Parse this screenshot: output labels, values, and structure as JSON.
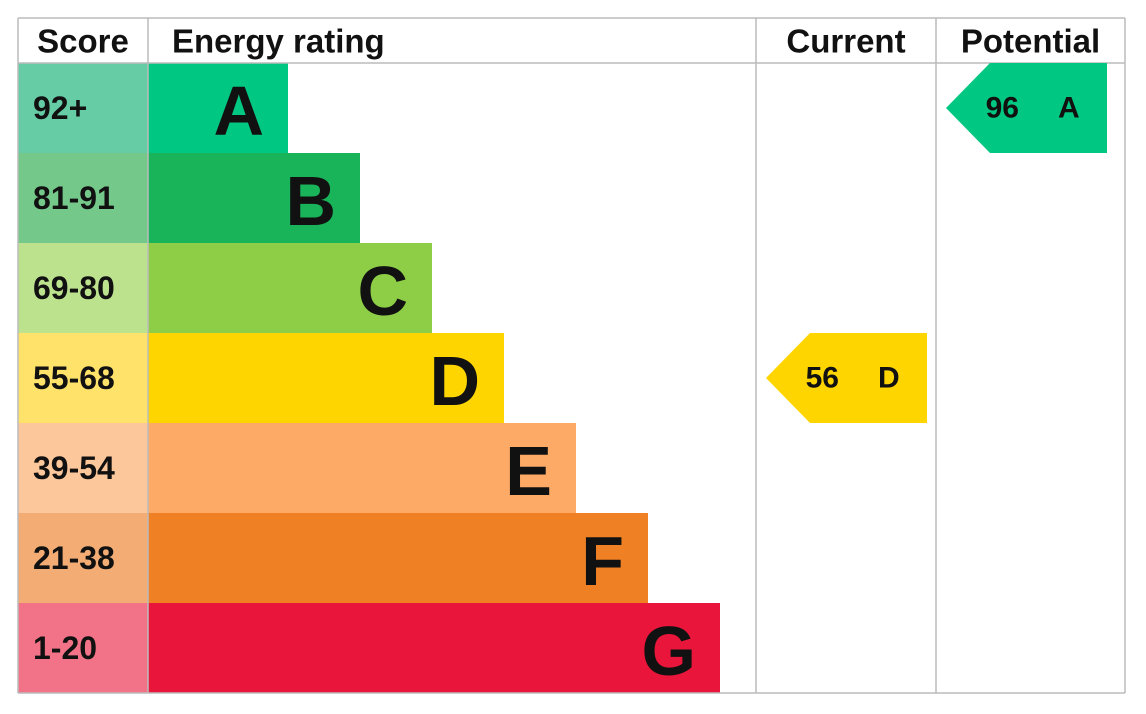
{
  "headers": [
    "Score",
    "Energy rating",
    "Current",
    "Potential"
  ],
  "bands": [
    {
      "score": "92+",
      "letter": "A"
    },
    {
      "score": "81-91",
      "letter": "B"
    },
    {
      "score": "69-80",
      "letter": "C"
    },
    {
      "score": "55-68",
      "letter": "D"
    },
    {
      "score": "39-54",
      "letter": "E"
    },
    {
      "score": "21-38",
      "letter": "F"
    },
    {
      "score": "1-20",
      "letter": "G"
    }
  ],
  "current": {
    "value": 56,
    "letter": "D"
  },
  "potential": {
    "value": 96,
    "letter": "A"
  }
}
